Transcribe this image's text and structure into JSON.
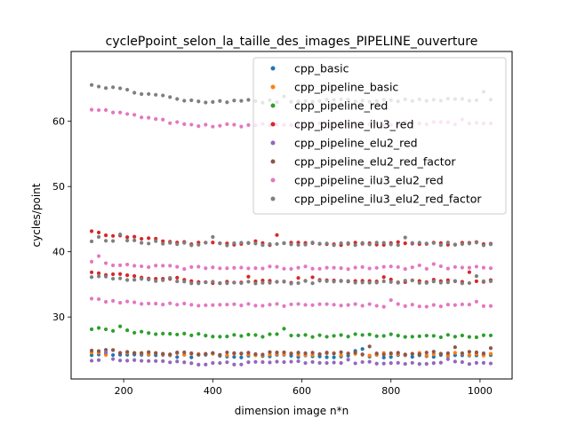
{
  "chart_data": {
    "type": "scatter",
    "title": "cyclePpoint_selon_la_taille_des_images_PIPELINE_ouverture",
    "xlabel": "dimension image n*n",
    "ylabel": "cycles/point",
    "xlim": [
      82,
      1072
    ],
    "ylim": [
      20.5,
      70.7
    ],
    "xticks": [
      200,
      400,
      600,
      800,
      1000
    ],
    "yticks": [
      30,
      40,
      50,
      60
    ],
    "grid": false,
    "legend_position": "top-right",
    "x_range": [
      128,
      1024
    ],
    "series": [
      {
        "name": "cpp_basic",
        "color": "#1f77b4",
        "values": [
          24.1,
          24.0,
          24.0
        ]
      },
      {
        "name": "cpp_pipeline_basic",
        "color": "#ff7f0e",
        "values": [
          24.4,
          24.3,
          24.3
        ]
      },
      {
        "name": "cpp_pipeline_red",
        "color": "#2ca02c",
        "values": [
          28.2,
          27.2,
          27.1
        ]
      },
      {
        "name": "cpp_pipeline_ilu3_red",
        "color": "#d62728",
        "values": [
          43.0,
          41.2,
          41.3
        ]
      },
      {
        "name": "cpp_pipeline_elu2_red",
        "color": "#9467bd",
        "values": [
          23.5,
          22.9,
          23.0
        ]
      },
      {
        "name": "cpp_pipeline_elu2_red_factor",
        "color": "#8c564b",
        "values": [
          24.8,
          24.4,
          24.5
        ]
      },
      {
        "name": "cpp_pipeline_ilu3_elu2_red",
        "color": "#e377c2",
        "values": [
          62.0,
          59.3,
          59.8
        ]
      },
      {
        "name": "cpp_pipeline_ilu3_elu2_red_factor",
        "color": "#7f7f7f",
        "values": [
          65.6,
          63.0,
          63.3
        ]
      }
    ],
    "extra_bands": [
      {
        "series": 3,
        "values": [
          36.8,
          35.4,
          35.6
        ]
      },
      {
        "series": 6,
        "values": [
          38.3,
          37.5,
          37.6
        ]
      },
      {
        "series": 6,
        "values": [
          32.6,
          31.8,
          31.8
        ]
      },
      {
        "series": 7,
        "values": [
          41.8,
          41.2,
          41.2
        ]
      },
      {
        "series": 7,
        "values": [
          36.2,
          35.3,
          35.4
        ]
      }
    ]
  }
}
